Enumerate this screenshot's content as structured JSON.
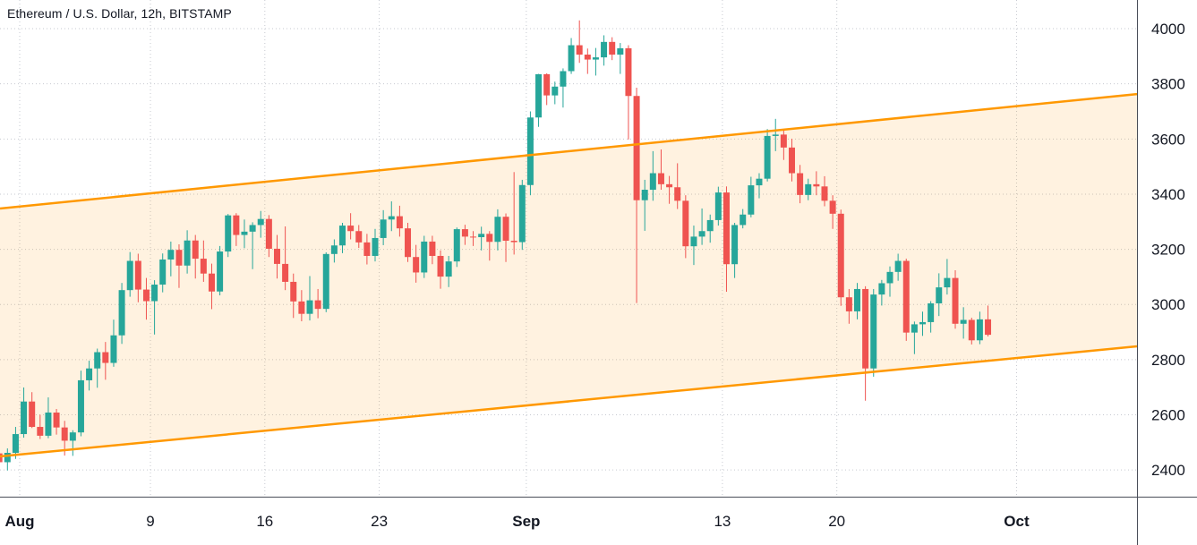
{
  "chart": {
    "title": "Ethereum / U.S. Dollar, 12h, BITSTAMP"
  },
  "chart_data": {
    "type": "candlestick",
    "title": "Ethereum / U.S. Dollar, 12h, BITSTAMP",
    "symbol": "Ethereum / U.S. Dollar",
    "interval": "12h",
    "exchange": "BITSTAMP",
    "legend_position": "top-left",
    "grid": true,
    "y_axis": {
      "side": "right",
      "ticks": [
        4000,
        3800,
        3600,
        3400,
        3200,
        3000,
        2800,
        2600,
        2400
      ],
      "price_at_top": 4104,
      "price_at_bottom": 2303
    },
    "x_axis": {
      "side": "bottom",
      "ticks": [
        {
          "label": "Aug",
          "day": 0,
          "bold": true
        },
        {
          "label": "9",
          "day": 8,
          "bold": false
        },
        {
          "label": "16",
          "day": 15,
          "bold": false
        },
        {
          "label": "23",
          "day": 22,
          "bold": false
        },
        {
          "label": "Sep",
          "day": 31,
          "bold": true
        },
        {
          "label": "13",
          "day": 43,
          "bold": false
        },
        {
          "label": "20",
          "day": 50,
          "bold": false
        },
        {
          "label": "Oct",
          "day": 61,
          "bold": true
        }
      ],
      "day_at_left": -1.205,
      "day_at_right": 68.37
    },
    "candles": {
      "first_day": -1.5,
      "interval_days": 0.5,
      "ohlc": [
        [
          2460,
          2490,
          2405,
          2428
        ],
        [
          2428,
          2478,
          2398,
          2462
        ],
        [
          2462,
          2556,
          2440,
          2530
        ],
        [
          2530,
          2699,
          2517,
          2648
        ],
        [
          2648,
          2682,
          2552,
          2556
        ],
        [
          2556,
          2600,
          2512,
          2524
        ],
        [
          2524,
          2663,
          2515,
          2608
        ],
        [
          2608,
          2621,
          2528,
          2554
        ],
        [
          2554,
          2578,
          2452,
          2506
        ],
        [
          2506,
          2544,
          2451,
          2536
        ],
        [
          2536,
          2760,
          2522,
          2725
        ],
        [
          2725,
          2796,
          2688,
          2768
        ],
        [
          2768,
          2840,
          2698,
          2827
        ],
        [
          2827,
          2864,
          2727,
          2788
        ],
        [
          2788,
          2945,
          2774,
          2888
        ],
        [
          2888,
          3078,
          2857,
          3052
        ],
        [
          3052,
          3190,
          3028,
          3158
        ],
        [
          3158,
          3184,
          3008,
          3054
        ],
        [
          3054,
          3096,
          2945,
          3012
        ],
        [
          3012,
          3088,
          2891,
          3072
        ],
        [
          3072,
          3185,
          3044,
          3163
        ],
        [
          3163,
          3228,
          3102,
          3198
        ],
        [
          3198,
          3218,
          3060,
          3141
        ],
        [
          3141,
          3269,
          3112,
          3232
        ],
        [
          3232,
          3252,
          3094,
          3166
        ],
        [
          3166,
          3232,
          3082,
          3112
        ],
        [
          3112,
          3148,
          2983,
          3047
        ],
        [
          3047,
          3212,
          3033,
          3192
        ],
        [
          3192,
          3328,
          3172,
          3323
        ],
        [
          3323,
          3331,
          3212,
          3252
        ],
        [
          3252,
          3308,
          3204,
          3264
        ],
        [
          3264,
          3298,
          3128,
          3288
        ],
        [
          3288,
          3339,
          3242,
          3310
        ],
        [
          3310,
          3324,
          3172,
          3202
        ],
        [
          3202,
          3252,
          3094,
          3147
        ],
        [
          3147,
          3283,
          3052,
          3082
        ],
        [
          3082,
          3112,
          2951,
          3011
        ],
        [
          3011,
          3052,
          2939,
          2966
        ],
        [
          2966,
          3103,
          2942,
          3015
        ],
        [
          3015,
          3056,
          2950,
          2984
        ],
        [
          2984,
          3189,
          2972,
          3183
        ],
        [
          3183,
          3236,
          3152,
          3214
        ],
        [
          3214,
          3296,
          3186,
          3286
        ],
        [
          3286,
          3331,
          3236,
          3266
        ],
        [
          3266,
          3288,
          3205,
          3225
        ],
        [
          3225,
          3256,
          3145,
          3176
        ],
        [
          3176,
          3274,
          3156,
          3241
        ],
        [
          3241,
          3342,
          3215,
          3308
        ],
        [
          3308,
          3374,
          3266,
          3320
        ],
        [
          3320,
          3358,
          3246,
          3276
        ],
        [
          3276,
          3296,
          3154,
          3172
        ],
        [
          3172,
          3216,
          3079,
          3116
        ],
        [
          3116,
          3249,
          3096,
          3228
        ],
        [
          3228,
          3249,
          3146,
          3176
        ],
        [
          3176,
          3196,
          3057,
          3101
        ],
        [
          3101,
          3176,
          3063,
          3156
        ],
        [
          3156,
          3279,
          3136,
          3273
        ],
        [
          3273,
          3289,
          3216,
          3246
        ],
        [
          3246,
          3266,
          3212,
          3244
        ],
        [
          3244,
          3282,
          3196,
          3256
        ],
        [
          3256,
          3266,
          3159,
          3227
        ],
        [
          3227,
          3345,
          3196,
          3318
        ],
        [
          3318,
          3330,
          3154,
          3231
        ],
        [
          3231,
          3480,
          3181,
          3226
        ],
        [
          3226,
          3452,
          3198,
          3433
        ],
        [
          3433,
          3700,
          3396,
          3678
        ],
        [
          3678,
          3836,
          3644,
          3835
        ],
        [
          3835,
          3838,
          3723,
          3758
        ],
        [
          3758,
          3808,
          3726,
          3790
        ],
        [
          3790,
          3856,
          3714,
          3846
        ],
        [
          3846,
          3966,
          3836,
          3940
        ],
        [
          3940,
          4030,
          3876,
          3906
        ],
        [
          3906,
          3928,
          3836,
          3888
        ],
        [
          3888,
          3930,
          3830,
          3896
        ],
        [
          3896,
          3976,
          3866,
          3952
        ],
        [
          3952,
          3969,
          3886,
          3906
        ],
        [
          3906,
          3948,
          3836,
          3929
        ],
        [
          3929,
          3940,
          3598,
          3756
        ],
        [
          3756,
          3786,
          3005,
          3378
        ],
        [
          3378,
          3452,
          3267,
          3416
        ],
        [
          3416,
          3556,
          3376,
          3476
        ],
        [
          3476,
          3562,
          3416,
          3436
        ],
        [
          3436,
          3466,
          3365,
          3425
        ],
        [
          3425,
          3512,
          3346,
          3376
        ],
        [
          3376,
          3396,
          3168,
          3211
        ],
        [
          3211,
          3286,
          3143,
          3246
        ],
        [
          3246,
          3348,
          3216,
          3266
        ],
        [
          3266,
          3326,
          3224,
          3306
        ],
        [
          3306,
          3427,
          3286,
          3406
        ],
        [
          3406,
          3428,
          3046,
          3146
        ],
        [
          3146,
          3296,
          3096,
          3288
        ],
        [
          3288,
          3346,
          3276,
          3326
        ],
        [
          3326,
          3463,
          3316,
          3432
        ],
        [
          3432,
          3476,
          3385,
          3456
        ],
        [
          3456,
          3636,
          3446,
          3611
        ],
        [
          3611,
          3673,
          3556,
          3616
        ],
        [
          3616,
          3636,
          3524,
          3569
        ],
        [
          3569,
          3601,
          3446,
          3476
        ],
        [
          3476,
          3506,
          3367,
          3397
        ],
        [
          3397,
          3456,
          3378,
          3436
        ],
        [
          3436,
          3483,
          3396,
          3428
        ],
        [
          3428,
          3465,
          3356,
          3376
        ],
        [
          3376,
          3396,
          3274,
          3329
        ],
        [
          3329,
          3344,
          2995,
          3026
        ],
        [
          3026,
          3056,
          2930,
          2975
        ],
        [
          2975,
          3078,
          2946,
          3056
        ],
        [
          3056,
          3066,
          2651,
          2768
        ],
        [
          2768,
          3056,
          2738,
          3036
        ],
        [
          3036,
          3089,
          2996,
          3077
        ],
        [
          3077,
          3138,
          3028,
          3118
        ],
        [
          3118,
          3184,
          3086,
          3158
        ],
        [
          3158,
          3166,
          2868,
          2898
        ],
        [
          2898,
          2938,
          2820,
          2928
        ],
        [
          2928,
          2974,
          2886,
          2936
        ],
        [
          2936,
          3012,
          2898,
          3004
        ],
        [
          3004,
          3113,
          2958,
          3062
        ],
        [
          3062,
          3165,
          3036,
          3096
        ],
        [
          3096,
          3124,
          2912,
          2930
        ],
        [
          2930,
          2990,
          2876,
          2944
        ],
        [
          2944,
          2952,
          2855,
          2870
        ],
        [
          2870,
          2974,
          2856,
          2946
        ],
        [
          2946,
          2996,
          2884,
          2890
        ]
      ]
    },
    "channel": {
      "name": "ascending-parallel-channel",
      "upper_price_left": 3348,
      "upper_price_right": 3763,
      "lower_price_left": 2449,
      "lower_price_right": 2848,
      "line_color": "#ff9800",
      "line_width": 2.5,
      "fill_color": "#ff9800",
      "fill_opacity": 0.12
    },
    "colors": {
      "up": "#26a69a",
      "down": "#ef5350",
      "grid": "#c6c9d0",
      "axis_line": "#4a4e59",
      "text": "#131722",
      "background": "#ffffff"
    }
  }
}
